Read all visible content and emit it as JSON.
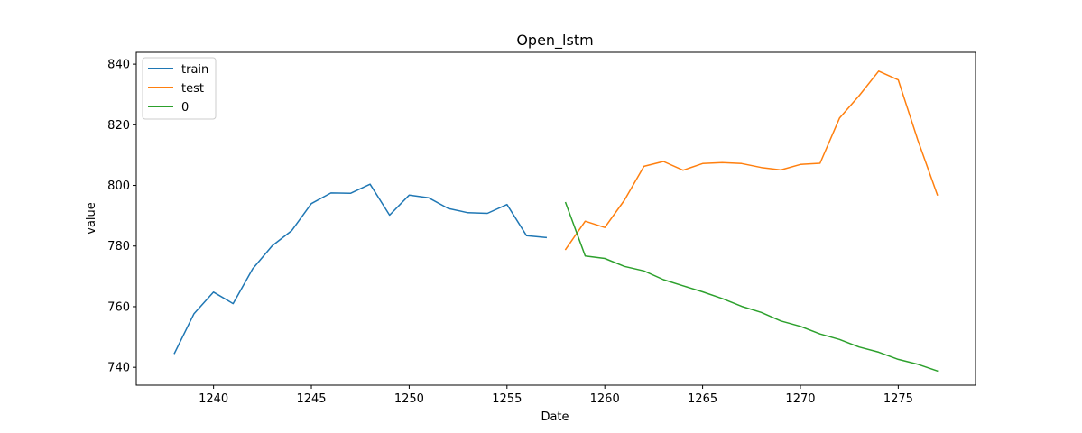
{
  "chart_data": {
    "type": "line",
    "title": "Open_lstm",
    "xlabel": "Date",
    "ylabel": "value",
    "xlim": [
      1236.05,
      1278.95
    ],
    "ylim": [
      734.1,
      843.9
    ],
    "xticks": [
      1240,
      1245,
      1250,
      1255,
      1260,
      1265,
      1270,
      1275
    ],
    "yticks": [
      740,
      760,
      780,
      800,
      820,
      840
    ],
    "grid": false,
    "legend_position": "top-left",
    "series": [
      {
        "name": "train",
        "color": "#1f77b4",
        "x": [
          1238,
          1239,
          1240,
          1241,
          1242,
          1243,
          1244,
          1245,
          1246,
          1247,
          1248,
          1249,
          1250,
          1251,
          1252,
          1253,
          1254,
          1255,
          1256,
          1257
        ],
        "y": [
          744.6,
          757.7,
          764.8,
          761.0,
          772.5,
          780.1,
          785.1,
          794.0,
          797.5,
          797.4,
          800.4,
          790.2,
          796.8,
          795.9,
          792.4,
          791.0,
          790.8,
          793.7,
          783.4,
          782.8
        ]
      },
      {
        "name": "test",
        "color": "#ff7f0e",
        "x": [
          1258,
          1259,
          1260,
          1261,
          1262,
          1263,
          1264,
          1265,
          1266,
          1267,
          1268,
          1269,
          1270,
          1271,
          1272,
          1273,
          1274,
          1275,
          1276,
          1277
        ],
        "y": [
          778.9,
          788.2,
          786.1,
          795.1,
          806.3,
          807.9,
          805.0,
          807.2,
          807.5,
          807.2,
          805.9,
          805.1,
          806.9,
          807.3,
          822.2,
          829.6,
          837.7,
          834.8,
          815.0,
          796.9
        ]
      },
      {
        "name": "0",
        "color": "#2ca02c",
        "x": [
          1258,
          1259,
          1260,
          1261,
          1262,
          1263,
          1264,
          1265,
          1266,
          1267,
          1268,
          1269,
          1270,
          1271,
          1272,
          1273,
          1274,
          1275,
          1276,
          1277
        ],
        "y": [
          794.3,
          776.7,
          775.9,
          773.3,
          771.8,
          768.9,
          766.9,
          764.9,
          762.7,
          760.1,
          758.1,
          755.3,
          753.5,
          751.0,
          749.2,
          746.7,
          745.0,
          742.6,
          741.0,
          738.8
        ]
      }
    ]
  }
}
